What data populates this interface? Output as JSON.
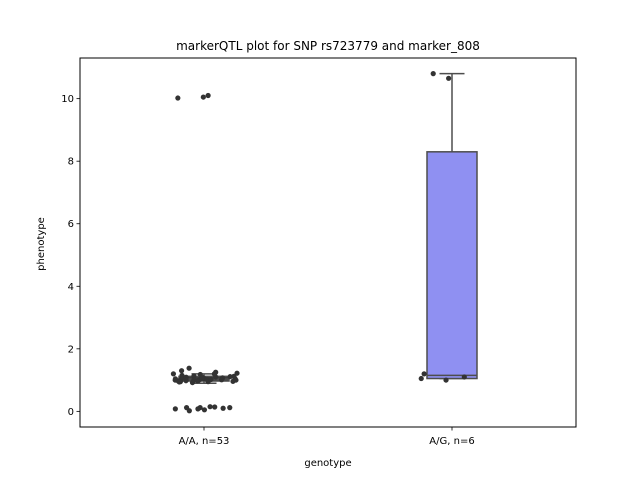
{
  "chart_data": {
    "type": "box",
    "title": "markerQTL plot for SNP rs723779 and marker_808",
    "xlabel": "genotype",
    "ylabel": "phenotype",
    "ylim": [
      -0.5,
      11.3
    ],
    "yticks": [
      0,
      2,
      4,
      6,
      8,
      10
    ],
    "categories": [
      "A/A, n=53",
      "A/G, n=6"
    ],
    "box_colors": [
      "#3a3a3a",
      "#8f90f2"
    ],
    "edge_color": "#4d4d4d",
    "point_color": "#333333",
    "grid": false,
    "legend": "none",
    "boxes": [
      {
        "q1": 0.97,
        "median": 1.03,
        "q3": 1.12,
        "whisker_low": 0.9,
        "whisker_high": 1.2
      },
      {
        "q1": 1.05,
        "median": 1.15,
        "q3": 8.3,
        "whisker_low": 1.05,
        "whisker_high": 10.8
      }
    ],
    "points": [
      [
        10.05,
        10.1,
        10.02,
        0.12,
        0.12,
        0.05,
        0.08,
        0.12,
        0.15,
        0.08,
        0.02,
        0.1,
        0.14,
        1.0,
        1.05,
        0.98,
        1.1,
        1.02,
        0.95,
        1.08,
        1.15,
        1.2,
        1.12,
        1.0,
        0.97,
        1.03,
        1.05,
        1.1,
        0.99,
        1.01,
        1.25,
        1.38,
        1.3,
        1.22,
        1.18,
        1.05,
        1.02,
        0.92,
        0.95,
        1.07,
        1.13,
        1.0,
        1.04,
        0.96,
        1.09,
        1.11,
        1.06,
        1.0,
        1.02,
        0.98,
        1.01,
        1.2,
        0.94
      ],
      [
        10.8,
        10.65,
        1.2,
        1.05,
        1.0,
        1.1
      ]
    ]
  }
}
